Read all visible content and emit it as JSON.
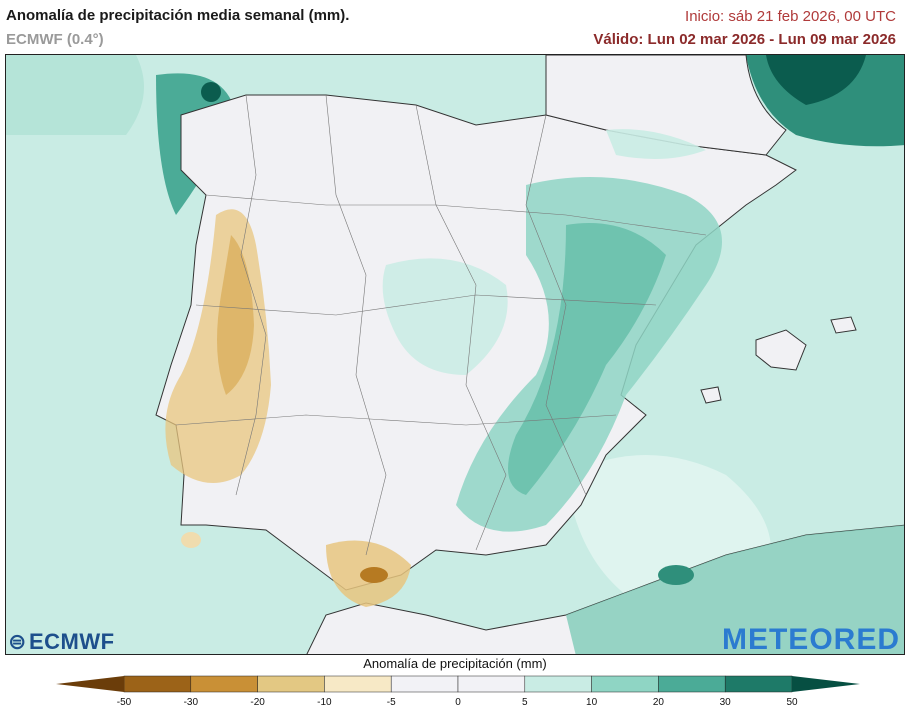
{
  "header": {
    "title": "Anomalía de precipitación media semanal (mm).",
    "model": "ECMWF (0.4°)",
    "init": "Inicio:  sáb 21 feb 2026, 00 UTC",
    "valid": "Válido: Lun 02 mar 2026 - Lun 09 mar 2026"
  },
  "logos": {
    "ecmwf": "ECMWF",
    "meteored": "METEORED"
  },
  "legend": {
    "title": "Anomalía de precipitación (mm)",
    "ticks": [
      "-50",
      "-30",
      "-20",
      "-10",
      "-5",
      "0",
      "5",
      "10",
      "20",
      "30",
      "50"
    ],
    "colors": [
      "#6b3d0a",
      "#9c6318",
      "#c99036",
      "#e3c883",
      "#f7e9c6",
      "#f2f2f6",
      "#f2f2f6",
      "#c9ece4",
      "#8fd5c4",
      "#4bab97",
      "#1e7a68",
      "#064f42"
    ]
  },
  "map_colors": {
    "sea": "#c9ece4",
    "land": "#f1f1f4",
    "dry": "#e8c57f",
    "dry_strong": "#b67a22",
    "wet": "#7fccb8",
    "wet_strong": "#2f8f7b",
    "wet_max": "#0b5c4e"
  }
}
